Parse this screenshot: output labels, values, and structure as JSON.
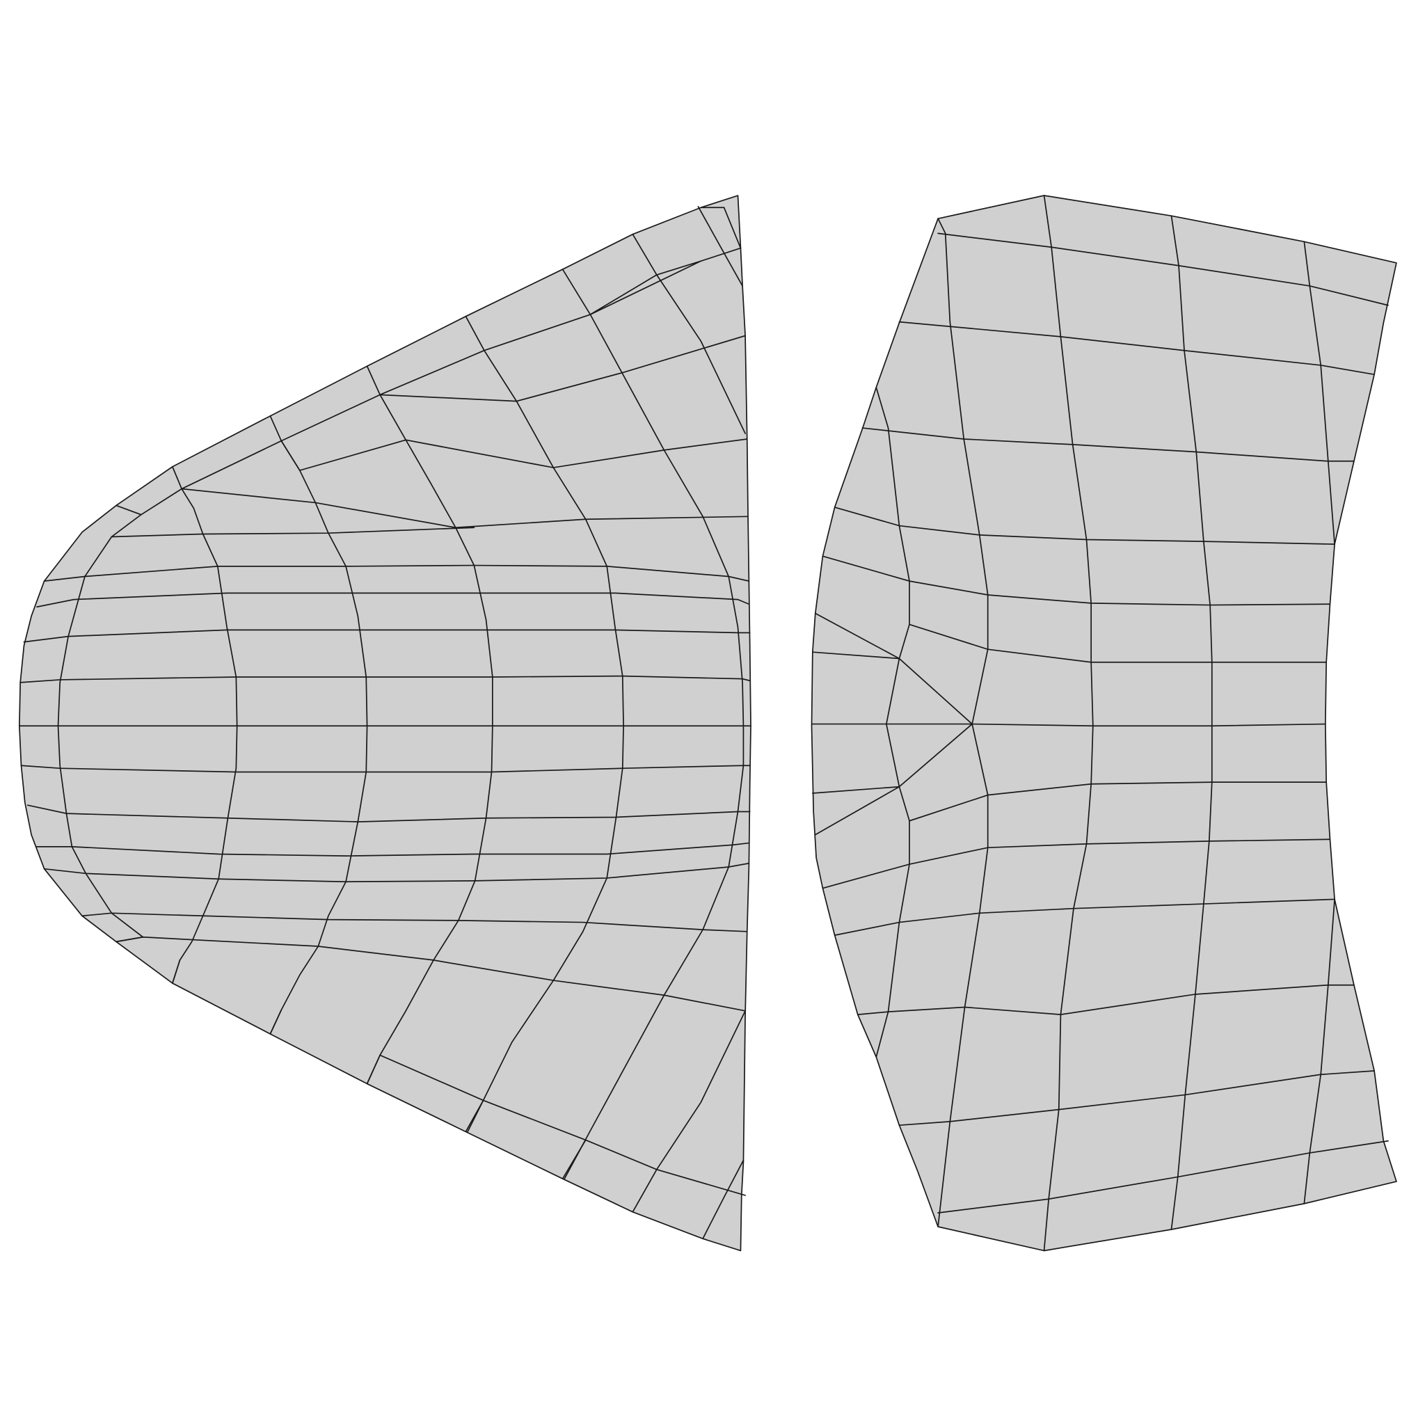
{
  "diagram": {
    "description_free": true,
    "colors": {
      "background": "#ffffff",
      "fill": "#d0d0d0",
      "stroke": "#1a1a1a"
    },
    "patches": [
      {
        "name": "left-mesh-patch",
        "kind": "quad-mesh",
        "shape": "parabolic-fan"
      },
      {
        "name": "right-mesh-patch",
        "kind": "quad-mesh",
        "shape": "curved-rectangle"
      }
    ]
  }
}
